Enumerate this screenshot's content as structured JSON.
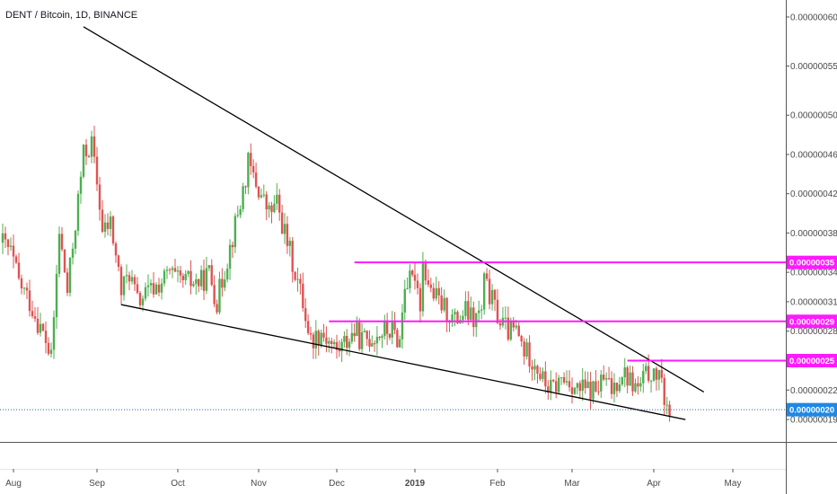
{
  "title": "DENT / Bitcoin, 1D, BINANCE",
  "colors": {
    "up": "#4caf50",
    "down": "#e05252",
    "trendline": "#000000",
    "level": "#ff1aff",
    "last_price": "#1e88e5",
    "last_price_line": "#2a6aa8"
  },
  "chart_data": {
    "type": "candlestick",
    "title": "DENT / Bitcoin, 1D, BINANCE",
    "x_ticks": [
      "Aug",
      "Sep",
      "Oct",
      "Nov",
      "Dec",
      "2019",
      "Feb",
      "Mar",
      "Apr",
      "May"
    ],
    "y_ticks": [
      "0.00000060",
      "0.00000055",
      "0.00000050",
      "0.00000046",
      "0.00000042",
      "0.00000038",
      "0.00000034",
      "0.00000031",
      "0.00000028",
      "0.00000022",
      "0.00000019"
    ],
    "ylim": [
      1.8e-07,
      6.1e-07
    ],
    "price_tags": [
      {
        "label": "0.00000035",
        "value": 3.5e-07,
        "color": "#ff1aff"
      },
      {
        "label": "0.00000029",
        "value": 2.9e-07,
        "color": "#ff1aff"
      },
      {
        "label": "0.00000025",
        "value": 2.5e-07,
        "color": "#ff1aff"
      },
      {
        "label": "0.00000020",
        "value": 2e-07,
        "color": "#1e88e5"
      }
    ],
    "horizontal_levels": [
      {
        "value": 3.5e-07,
        "from": "2018-12-08",
        "to": "2019-05-25"
      },
      {
        "value": 2.9e-07,
        "from": "2018-11-28",
        "to": "2019-05-25"
      },
      {
        "value": 2.5e-07,
        "from": "2019-03-22",
        "to": "2019-05-25"
      }
    ],
    "trendlines": [
      {
        "from": [
          "2018-08-27",
          5.9e-07
        ],
        "to": [
          "2019-04-20",
          2.18e-07
        ]
      },
      {
        "from": [
          "2018-09-10",
          3.07e-07
        ],
        "to": [
          "2019-04-13",
          1.9e-07
        ]
      }
    ],
    "last_price": 2e-07,
    "series": {
      "segments": [
        [
          "2018-07-28",
          3.7e-07,
          3.6e-07,
          3.3e-07
        ],
        [
          "2018-08-07",
          3.1e-07,
          2.9e-07,
          2.7e-07
        ],
        [
          "2018-08-15",
          2.5e-07,
          3.8e-07,
          3.2e-07
        ],
        [
          "2018-08-27",
          4.6e-07,
          4.7e-07,
          4.1e-07
        ],
        [
          "2018-09-03",
          3.8e-07,
          3.9e-07,
          3.4e-07
        ],
        [
          "2018-09-10",
          3.2e-07,
          3.4e-07,
          3.1e-07
        ],
        [
          "2018-09-25",
          3.3e-07,
          3.4e-07,
          3.3e-07
        ],
        [
          "2018-10-10",
          3.3e-07,
          3.4e-07,
          3.1e-07
        ],
        [
          "2018-10-25",
          4.1e-07,
          4.5e-07,
          4.3e-07
        ],
        [
          "2018-11-05",
          4e-07,
          4.1e-07,
          3.8e-07
        ],
        [
          "2018-11-15",
          3.4e-07,
          3.1e-07,
          2.7e-07
        ],
        [
          "2018-11-25",
          2.8e-07,
          2.7e-07,
          2.6e-07
        ],
        [
          "2018-12-05",
          2.7e-07,
          2.8e-07,
          2.7e-07
        ],
        [
          "2018-12-20",
          2.8e-07,
          2.8e-07,
          2.7e-07
        ],
        [
          "2018-12-28",
          3.3e-07,
          3.3e-07,
          3.1e-07
        ],
        [
          "2019-01-01",
          3.4e-07,
          3.5e-07,
          3.2e-07
        ],
        [
          "2019-01-10",
          3.1e-07,
          3e-07,
          2.9e-07
        ],
        [
          "2019-01-20",
          3e-07,
          2.9e-07,
          3e-07
        ],
        [
          "2019-01-27",
          3.3e-07,
          3.1e-07,
          2.9e-07
        ],
        [
          "2019-02-05",
          2.8e-07,
          2.8e-07,
          2.6e-07
        ],
        [
          "2019-02-15",
          2.5e-07,
          2.3e-07,
          2.2e-07
        ],
        [
          "2019-02-25",
          2.3e-07,
          2.3e-07,
          2.2e-07
        ],
        [
          "2019-03-10",
          2.2e-07,
          2.3e-07,
          2.2e-07
        ],
        [
          "2019-03-20",
          2.4e-07,
          2.3e-07,
          2.2e-07
        ],
        [
          "2019-03-28",
          2.3e-07,
          2.4e-07,
          2.4e-07
        ],
        [
          "2019-04-01",
          2.3e-07,
          2.2e-07,
          2e-07
        ]
      ]
    }
  }
}
